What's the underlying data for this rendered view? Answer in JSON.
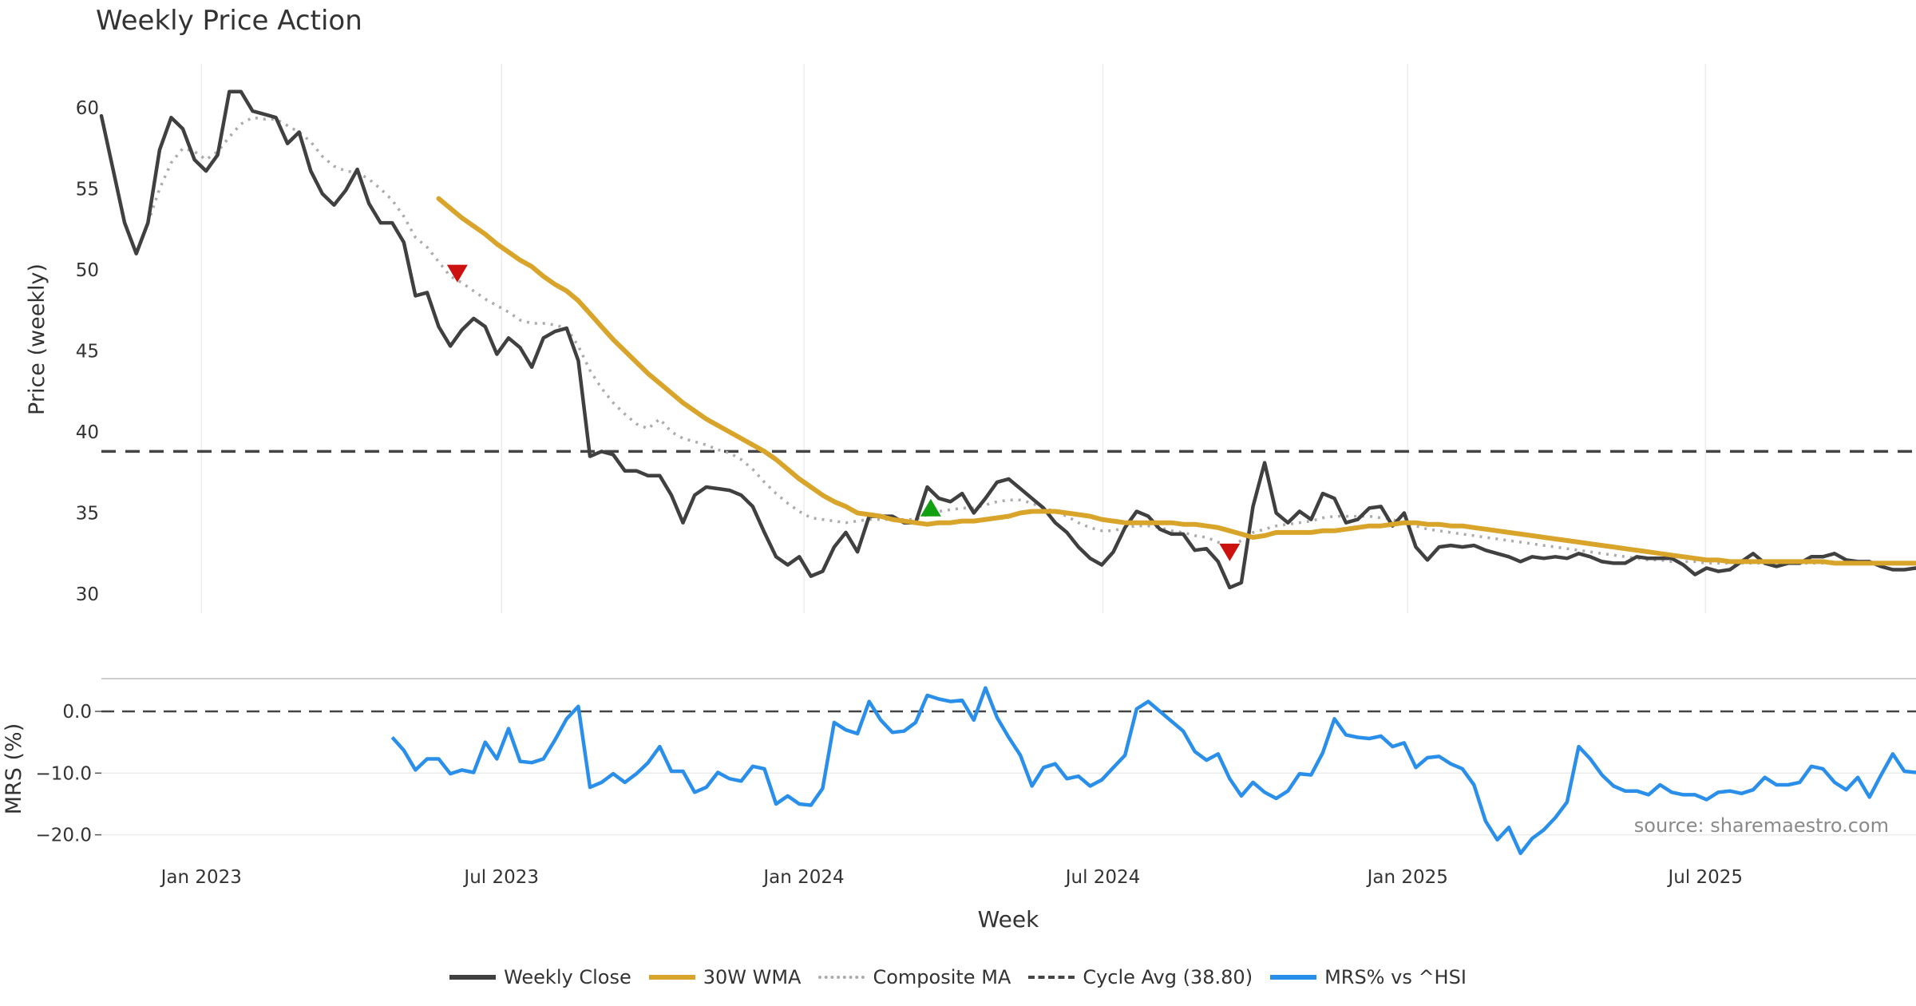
{
  "chart_data": [
    {
      "type": "line",
      "title": "Weekly Price Action",
      "ylabel": "Price (weekly)",
      "xlabel": "Week",
      "ylim": [
        28.8,
        62.5
      ],
      "yticks": [
        30,
        35,
        40,
        45,
        50,
        55,
        60
      ],
      "xticks": [
        {
          "label": "Jan 2023",
          "week": 8.6
        },
        {
          "label": "Jul 2023",
          "week": 34.4
        },
        {
          "label": "Jan 2024",
          "week": 60.4
        },
        {
          "label": "Jul 2024",
          "week": 86.1
        },
        {
          "label": "Jan 2025",
          "week": 112.3
        },
        {
          "label": "Jul 2025",
          "week": 137.9
        }
      ],
      "xlim": [
        0,
        156
      ],
      "grid": "vertical",
      "series": [
        {
          "name": "Weekly Close",
          "color": "#404040",
          "style": "solid",
          "start_week": 0,
          "values": [
            59.5,
            56.2,
            52.9,
            51.0,
            52.9,
            57.4,
            59.4,
            58.7,
            56.8,
            56.1,
            57.1,
            61.0,
            61.0,
            59.8,
            59.6,
            59.4,
            57.8,
            58.5,
            56.1,
            54.7,
            54.0,
            54.9,
            56.2,
            54.1,
            52.9,
            52.9,
            51.7,
            48.4,
            48.6,
            46.5,
            45.3,
            46.3,
            47.0,
            46.5,
            44.8,
            45.8,
            45.2,
            44.0,
            45.8,
            46.2,
            46.4,
            44.4,
            38.5,
            38.8,
            38.6,
            37.6,
            37.6,
            37.3,
            37.3,
            36.1,
            34.4,
            36.1,
            36.6,
            36.5,
            36.4,
            36.1,
            35.4,
            33.8,
            32.3,
            31.8,
            32.3,
            31.1,
            31.4,
            32.9,
            33.8,
            32.6,
            34.8,
            34.8,
            34.8,
            34.4,
            34.4,
            36.6,
            35.9,
            35.7,
            36.2,
            35.0,
            35.9,
            36.9,
            37.1,
            36.5,
            35.9,
            35.3,
            34.4,
            33.8,
            32.9,
            32.2,
            31.8,
            32.6,
            34.1,
            35.1,
            34.8,
            34.0,
            33.7,
            33.7,
            32.7,
            32.8,
            32.0,
            30.4,
            30.7,
            35.4,
            38.1,
            35.0,
            34.4,
            35.1,
            34.6,
            36.2,
            35.9,
            34.4,
            34.6,
            35.3,
            35.4,
            34.2,
            35.0,
            32.9,
            32.1,
            32.9,
            33.0,
            32.9,
            33.0,
            32.7,
            32.5,
            32.3,
            32.0,
            32.3,
            32.2,
            32.3,
            32.2,
            32.5,
            32.3,
            32.0,
            31.9,
            31.9,
            32.3,
            32.2,
            32.2,
            32.2,
            31.8,
            31.2,
            31.6,
            31.4,
            31.5,
            32.0,
            32.5,
            31.9,
            31.7,
            31.9,
            31.9,
            32.3,
            32.3,
            32.5,
            32.1,
            32.0,
            32.0,
            31.7,
            31.5,
            31.5,
            31.6
          ]
        },
        {
          "name": "30W WMA",
          "color": "#D9A42A",
          "style": "solid",
          "start_week": 29,
          "values": [
            54.4,
            53.8,
            53.2,
            52.7,
            52.2,
            51.6,
            51.1,
            50.6,
            50.2,
            49.6,
            49.1,
            48.7,
            48.1,
            47.3,
            46.5,
            45.7,
            45.0,
            44.3,
            43.6,
            43.0,
            42.4,
            41.8,
            41.3,
            40.8,
            40.4,
            40.0,
            39.6,
            39.2,
            38.8,
            38.3,
            37.7,
            37.1,
            36.6,
            36.1,
            35.7,
            35.4,
            35.0,
            34.9,
            34.8,
            34.6,
            34.5,
            34.4,
            34.3,
            34.4,
            34.4,
            34.5,
            34.5,
            34.6,
            34.7,
            34.8,
            35.0,
            35.1,
            35.1,
            35.1,
            35.0,
            34.9,
            34.8,
            34.6,
            34.5,
            34.4,
            34.4,
            34.4,
            34.4,
            34.4,
            34.3,
            34.3,
            34.2,
            34.1,
            33.9,
            33.7,
            33.5,
            33.6,
            33.8,
            33.8,
            33.8,
            33.8,
            33.9,
            33.9,
            34.0,
            34.1,
            34.2,
            34.2,
            34.3,
            34.4,
            34.4,
            34.3,
            34.3,
            34.2,
            34.2,
            34.1,
            34.0,
            33.9,
            33.8,
            33.7,
            33.6,
            33.5,
            33.4,
            33.3,
            33.2,
            33.1,
            33.0,
            32.9,
            32.8,
            32.7,
            32.6,
            32.5,
            32.4,
            32.3,
            32.2,
            32.1,
            32.1,
            32.0,
            32.0,
            32.0,
            32.0,
            32.0,
            32.0,
            32.0,
            32.0,
            32.0,
            31.9,
            31.9,
            31.9,
            31.9,
            31.9,
            31.9,
            31.9,
            31.9
          ]
        },
        {
          "name": "Composite MA",
          "color": "#ABABAB",
          "style": "dotted",
          "start_week": 4,
          "values": [
            52.9,
            55.0,
            56.6,
            57.5,
            57.3,
            56.8,
            57.3,
            58.2,
            59.0,
            59.4,
            59.3,
            59.3,
            58.9,
            58.5,
            57.9,
            57.0,
            56.4,
            56.1,
            56.0,
            55.6,
            55.0,
            54.3,
            53.3,
            52.0,
            51.4,
            50.5,
            49.6,
            49.2,
            48.7,
            48.2,
            47.8,
            47.4,
            46.9,
            46.7,
            46.7,
            46.6,
            46.4,
            45.3,
            43.8,
            42.7,
            41.8,
            41.1,
            40.5,
            40.2,
            40.8,
            40.0,
            39.6,
            39.4,
            39.2,
            38.9,
            38.7,
            38.3,
            37.7,
            36.9,
            36.2,
            35.6,
            35.1,
            34.7,
            34.6,
            34.5,
            34.4,
            34.5,
            34.6,
            34.6,
            34.6,
            34.6,
            34.6,
            34.9,
            35.1,
            35.2,
            35.3,
            35.3,
            35.5,
            35.7,
            35.8,
            35.8,
            35.6,
            35.3,
            35.1,
            34.8,
            34.4,
            34.1,
            33.9,
            33.9,
            34.1,
            34.2,
            34.2,
            34.1,
            33.9,
            33.8,
            33.6,
            33.5,
            33.2,
            32.9,
            33.3,
            33.8,
            34.0,
            34.2,
            34.3,
            34.4,
            34.5,
            34.7,
            34.8,
            34.8,
            34.8,
            34.8,
            34.7,
            34.6,
            34.4,
            34.2,
            34.0,
            33.9,
            33.8,
            33.7,
            33.6,
            33.5,
            33.4,
            33.3,
            33.2,
            33.1,
            33.0,
            32.9,
            32.8,
            32.7,
            32.6,
            32.5,
            32.4,
            32.3,
            32.2,
            32.1,
            32.1,
            32.0,
            32.0,
            32.0,
            31.9,
            31.9,
            31.9,
            31.9,
            31.9,
            31.9,
            31.9,
            31.9,
            31.9,
            31.9,
            31.9,
            31.9,
            31.9,
            31.9,
            31.9
          ]
        }
      ],
      "reference_line": {
        "name": "Cycle Avg (38.80)",
        "value": 38.8,
        "color": "#444444",
        "style": "dashed"
      },
      "markers": [
        {
          "type": "down",
          "week": 30.6,
          "price": 49.8,
          "color": "#CC1111"
        },
        {
          "type": "up",
          "week": 71.3,
          "price": 35.3,
          "color": "#12A012"
        },
        {
          "type": "down",
          "week": 97.0,
          "price": 32.6,
          "color": "#CC1111"
        }
      ]
    },
    {
      "type": "line",
      "ylabel": "MRS (%)",
      "ylim": [
        -23.5,
        5
      ],
      "yticks": [
        {
          "value": 0,
          "label": "0.0"
        },
        {
          "value": -10,
          "label": "−10.0"
        },
        {
          "value": -20,
          "label": "−20.0"
        }
      ],
      "series": [
        {
          "name": "MRS% vs ^HSI",
          "color": "#2A8FEA",
          "style": "solid",
          "start_week": 25,
          "values": [
            -4.2,
            -6.3,
            -9.5,
            -7.7,
            -7.7,
            -10.1,
            -9.5,
            -9.9,
            -5.0,
            -7.7,
            -2.8,
            -8.1,
            -8.3,
            -7.7,
            -4.6,
            -1.2,
            0.8,
            -12.3,
            -11.5,
            -10.1,
            -11.5,
            -10.1,
            -8.3,
            -5.7,
            -9.7,
            -9.7,
            -13.1,
            -12.3,
            -9.9,
            -10.9,
            -11.3,
            -8.9,
            -9.3,
            -15.0,
            -13.7,
            -15.0,
            -15.2,
            -12.5,
            -1.8,
            -3.0,
            -3.6,
            1.6,
            -1.4,
            -3.4,
            -3.2,
            -1.8,
            2.6,
            2.0,
            1.6,
            1.8,
            -1.4,
            3.8,
            -1.0,
            -4.2,
            -7.1,
            -12.1,
            -9.1,
            -8.5,
            -10.9,
            -10.5,
            -12.1,
            -11.1,
            -9.1,
            -7.1,
            0.4,
            1.6,
            0.0,
            -1.6,
            -3.2,
            -6.5,
            -7.9,
            -6.9,
            -10.9,
            -13.7,
            -11.5,
            -13.1,
            -14.1,
            -12.9,
            -10.1,
            -10.3,
            -6.7,
            -1.2,
            -3.8,
            -4.2,
            -4.4,
            -4.0,
            -5.7,
            -5.1,
            -9.1,
            -7.5,
            -7.3,
            -8.5,
            -9.3,
            -11.9,
            -17.8,
            -20.8,
            -18.8,
            -23.0,
            -20.6,
            -19.2,
            -17.2,
            -14.7,
            -5.7,
            -7.7,
            -10.3,
            -12.1,
            -12.9,
            -12.9,
            -13.5,
            -11.9,
            -13.1,
            -13.5,
            -13.5,
            -14.3,
            -13.1,
            -12.9,
            -13.3,
            -12.7,
            -10.7,
            -11.9,
            -11.9,
            -11.5,
            -8.9,
            -9.3,
            -11.5,
            -12.7,
            -10.7,
            -13.9,
            -10.3,
            -6.9,
            -9.7,
            -9.9
          ]
        }
      ],
      "reference_line": {
        "value": 0,
        "color": "#444444",
        "style": "dashed"
      }
    }
  ],
  "legend": {
    "placement": "bottom-center",
    "items": [
      {
        "label": "Weekly Close",
        "color": "#404040",
        "style": "solid"
      },
      {
        "label": "30W WMA",
        "color": "#D9A42A",
        "style": "solid"
      },
      {
        "label": "Composite MA",
        "color": "#ABABAB",
        "style": "dotted"
      },
      {
        "label": "Cycle Avg (38.80)",
        "color": "#444444",
        "style": "dashed"
      },
      {
        "label": "MRS% vs ^HSI",
        "color": "#2A8FEA",
        "style": "solid"
      }
    ]
  },
  "source": "source: sharemaestro.com"
}
